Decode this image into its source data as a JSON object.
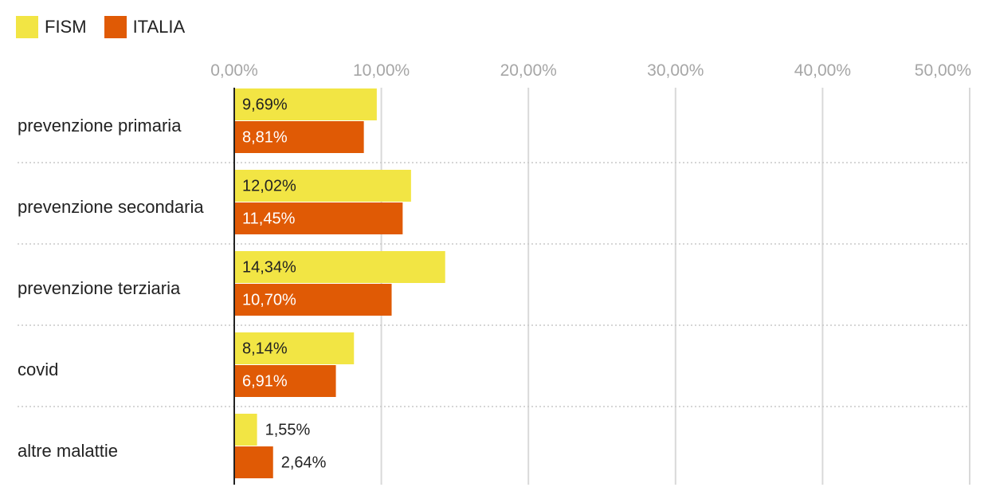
{
  "chart_data": {
    "type": "bar",
    "orientation": "horizontal",
    "categories": [
      "prevenzione primaria",
      "prevenzione secondaria",
      "prevenzione terziaria",
      "covid",
      "altre malattie"
    ],
    "series": [
      {
        "name": "FISM",
        "color": "#f2e544",
        "values": [
          9.69,
          12.02,
          14.34,
          8.14,
          1.55
        ],
        "labels": [
          "9,69%",
          "12,02%",
          "14,34%",
          "8,14%",
          "1,55%"
        ]
      },
      {
        "name": "ITALIA",
        "color": "#e05a05",
        "values": [
          8.81,
          11.45,
          10.7,
          6.91,
          2.64
        ],
        "labels": [
          "8,81%",
          "11,45%",
          "10,70%",
          "6,91%",
          "2,64%"
        ]
      }
    ],
    "xlim": [
      0,
      50
    ],
    "x_ticks": [
      0,
      10,
      20,
      30,
      40,
      50
    ],
    "x_tick_labels": [
      "0,00%",
      "10,00%",
      "20,00%",
      "30,00%",
      "40,00%",
      "50,00%"
    ],
    "grid": true,
    "legend_position": "top-left",
    "title": "",
    "xlabel": "",
    "ylabel": ""
  }
}
